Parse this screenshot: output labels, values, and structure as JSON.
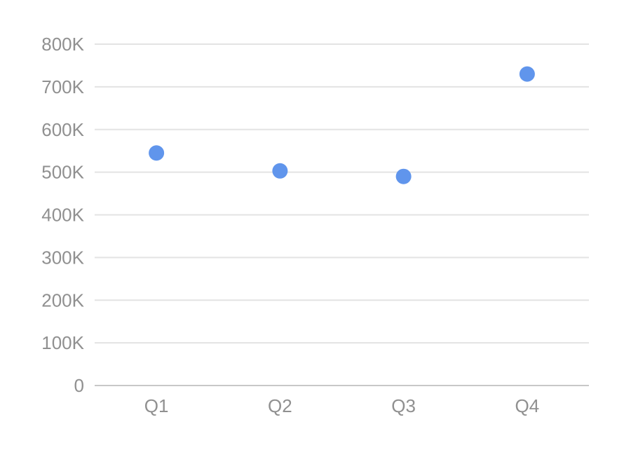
{
  "chart_data": {
    "type": "scatter",
    "categories": [
      "Q1",
      "Q2",
      "Q3",
      "Q4"
    ],
    "values": [
      545000,
      503000,
      490000,
      730000
    ],
    "y_ticks": [
      {
        "value": 800000,
        "label": "800K"
      },
      {
        "value": 700000,
        "label": "700K"
      },
      {
        "value": 600000,
        "label": "600K"
      },
      {
        "value": 500000,
        "label": "500K"
      },
      {
        "value": 400000,
        "label": "400K"
      },
      {
        "value": 300000,
        "label": "300K"
      },
      {
        "value": 200000,
        "label": "200K"
      },
      {
        "value": 100000,
        "label": "100K"
      },
      {
        "value": 0,
        "label": "0"
      }
    ],
    "ylim": [
      0,
      800000
    ],
    "grid": true,
    "legend_position": "none",
    "colors": {
      "point": "#6095EC",
      "gridline": "#E3E3E3",
      "baseline": "#C8C8C8",
      "label": "#909090",
      "background": "#FFFFFF"
    }
  }
}
